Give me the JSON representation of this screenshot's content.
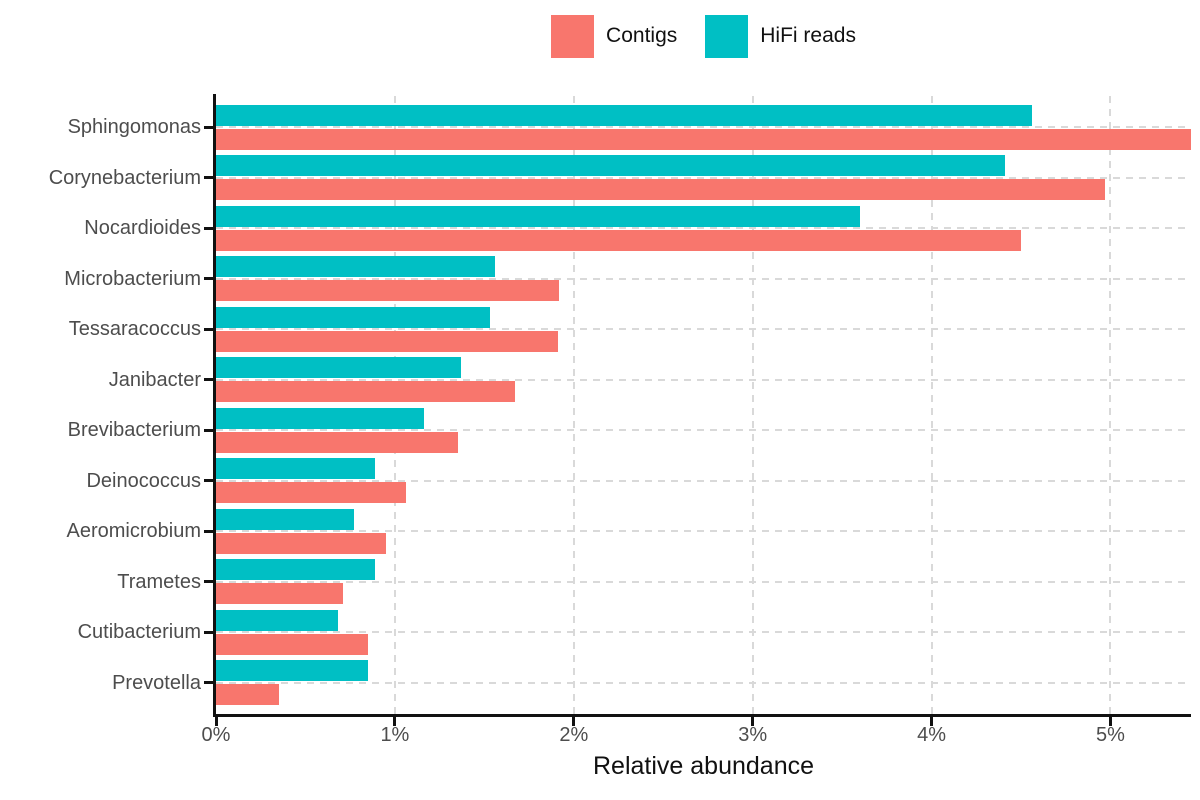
{
  "legend": {
    "items": [
      {
        "label": "Contigs",
        "color": "#F8766D"
      },
      {
        "label": "HiFi reads",
        "color": "#00BFC4"
      }
    ]
  },
  "chart_data": {
    "type": "bar",
    "orientation": "horizontal",
    "title": "",
    "xlabel": "Relative abundance",
    "ylabel": "",
    "categories": [
      "Sphingomonas",
      "Corynebacterium",
      "Nocardioides",
      "Microbacterium",
      "Tessaracoccus",
      "Janibacter",
      "Brevibacterium",
      "Deinococcus",
      "Aeromicrobium",
      "Trametes",
      "Cutibacterium",
      "Prevotella"
    ],
    "series": [
      {
        "name": "Contigs",
        "color": "#F8766D",
        "values": [
          5.45,
          4.97,
          4.5,
          1.92,
          1.91,
          1.67,
          1.35,
          1.06,
          0.95,
          0.71,
          0.85,
          0.35
        ]
      },
      {
        "name": "HiFi reads",
        "color": "#00BFC4",
        "values": [
          4.56,
          4.41,
          3.6,
          1.56,
          1.53,
          1.37,
          1.16,
          0.89,
          0.77,
          0.89,
          0.68,
          0.85
        ]
      }
    ],
    "bar_order_top_to_bottom": [
      "HiFi reads",
      "Contigs"
    ],
    "xlim": [
      0,
      5.45
    ],
    "x_ticks": [
      {
        "value": 0,
        "label": "0%"
      },
      {
        "value": 1,
        "label": "1%"
      },
      {
        "value": 2,
        "label": "2%"
      },
      {
        "value": 3,
        "label": "3%"
      },
      {
        "value": 4,
        "label": "4%"
      },
      {
        "value": 5,
        "label": "5%"
      }
    ],
    "grid": "dashed, vertical at each tick and horizontal at each category center",
    "legend_position": "top-center",
    "clipped_bars": [
      {
        "category": "Sphingomonas",
        "series": "Contigs"
      }
    ]
  },
  "colors": {
    "axis": "#111111",
    "tick_label": "#4d4d4d",
    "gridline": "#d9d9d9",
    "background": "#ffffff"
  }
}
